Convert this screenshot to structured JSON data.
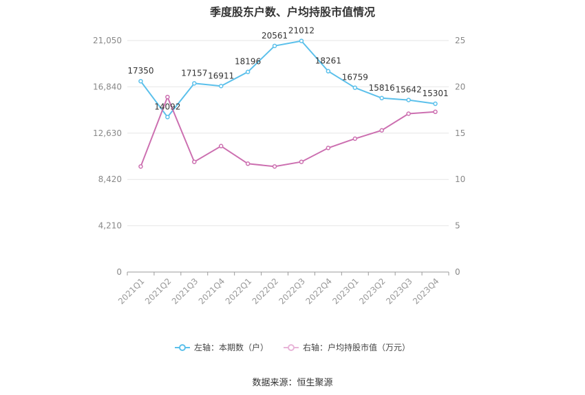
{
  "chart_data": {
    "type": "line",
    "title": "季度股东户数、户均持股市值情况",
    "categories": [
      "2021Q1",
      "2021Q2",
      "2021Q3",
      "2021Q4",
      "2022Q1",
      "2022Q2",
      "2022Q3",
      "2022Q4",
      "2023Q1",
      "2023Q2",
      "2023Q3",
      "2023Q4"
    ],
    "left_axis": {
      "min": 0,
      "max": 21050,
      "ticks": [
        "0",
        "4,210",
        "8,420",
        "12,630",
        "16,840",
        "21,050"
      ]
    },
    "right_axis": {
      "min": 0,
      "max": 25,
      "ticks": [
        "0",
        "5",
        "10",
        "15",
        "20",
        "25"
      ]
    },
    "series": [
      {
        "name": "左轴：本期数（户）",
        "axis": "left",
        "color": "#5bc0eb",
        "values": [
          17350,
          14092,
          17157,
          16911,
          18196,
          20561,
          21012,
          18261,
          16759,
          15816,
          15642,
          15301
        ],
        "labels": [
          "17350",
          "14092",
          "17157",
          "16911",
          "18196",
          "20561",
          "21012",
          "18261",
          "16759",
          "15816",
          "15642",
          "15301"
        ]
      },
      {
        "name": "右轴：户均持股市值（万元）",
        "axis": "right",
        "color": "#cc6fb0",
        "values": [
          11.4,
          18.9,
          11.9,
          13.6,
          11.7,
          11.4,
          11.9,
          13.4,
          14.4,
          15.3,
          17.1,
          17.3
        ]
      }
    ],
    "grid": true,
    "legend_position": "bottom"
  },
  "source": "数据来源：恒生聚源"
}
